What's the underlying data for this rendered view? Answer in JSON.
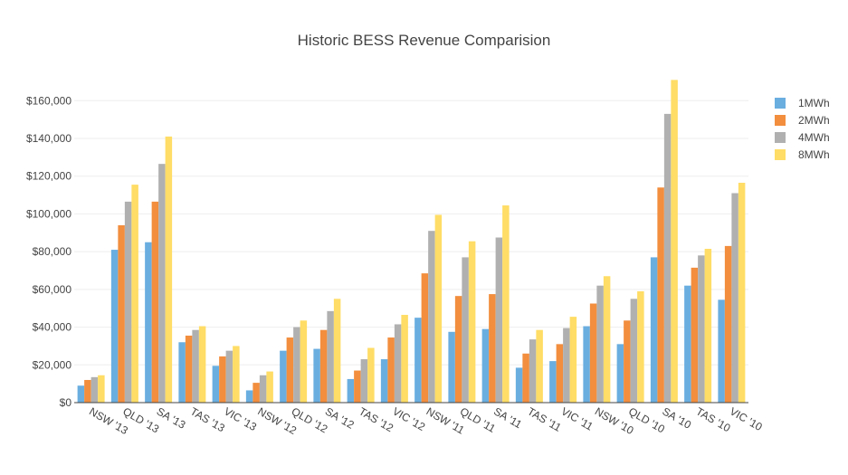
{
  "chart_data": {
    "type": "bar",
    "title": "Historic BESS Revenue Comparision",
    "xlabel": "",
    "ylabel": "",
    "ylim": [
      0,
      175000
    ],
    "yticks": [
      0,
      20000,
      40000,
      60000,
      80000,
      100000,
      120000,
      140000,
      160000
    ],
    "ytick_labels": [
      "$0",
      "$20,000",
      "$40,000",
      "$60,000",
      "$80,000",
      "$100,000",
      "$120,000",
      "$140,000",
      "$160,000"
    ],
    "grid": true,
    "legend_position": "top-right",
    "categories": [
      "NSW '13",
      "QLD '13",
      "SA '13",
      "TAS '13",
      "VIC '13",
      "NSW '12",
      "QLD '12",
      "SA '12",
      "TAS '12",
      "VIC '12",
      "NSW '11",
      "QLD '11",
      "SA '11",
      "TAS '11",
      "VIC '11",
      "NSW '10",
      "QLD '10",
      "SA '10",
      "TAS '10",
      "VIC '10"
    ],
    "series": [
      {
        "name": "1MWh",
        "color": "#6aaee0",
        "values": [
          9000,
          81000,
          85000,
          32000,
          19500,
          6500,
          27500,
          28500,
          12500,
          23000,
          45000,
          37500,
          39000,
          18500,
          22000,
          40500,
          31000,
          77000,
          62000,
          54500
        ]
      },
      {
        "name": "2MWh",
        "color": "#f28e3e",
        "values": [
          12000,
          94000,
          106500,
          35500,
          24500,
          10500,
          34500,
          38500,
          17000,
          34500,
          68500,
          56500,
          57500,
          26000,
          31000,
          52500,
          43500,
          114000,
          71500,
          83000
        ]
      },
      {
        "name": "4MWh",
        "color": "#b0b0b0",
        "values": [
          13500,
          106500,
          126500,
          38500,
          27500,
          14500,
          40000,
          48500,
          23000,
          41500,
          91000,
          77000,
          87500,
          33500,
          39500,
          62000,
          55000,
          153000,
          78000,
          111000
        ]
      },
      {
        "name": "8MWh",
        "color": "#ffdd66",
        "values": [
          14500,
          115500,
          141000,
          40500,
          30000,
          16500,
          43500,
          55000,
          29000,
          46500,
          99500,
          85500,
          104500,
          38500,
          45500,
          67000,
          59000,
          171000,
          81500,
          116500
        ]
      }
    ]
  }
}
